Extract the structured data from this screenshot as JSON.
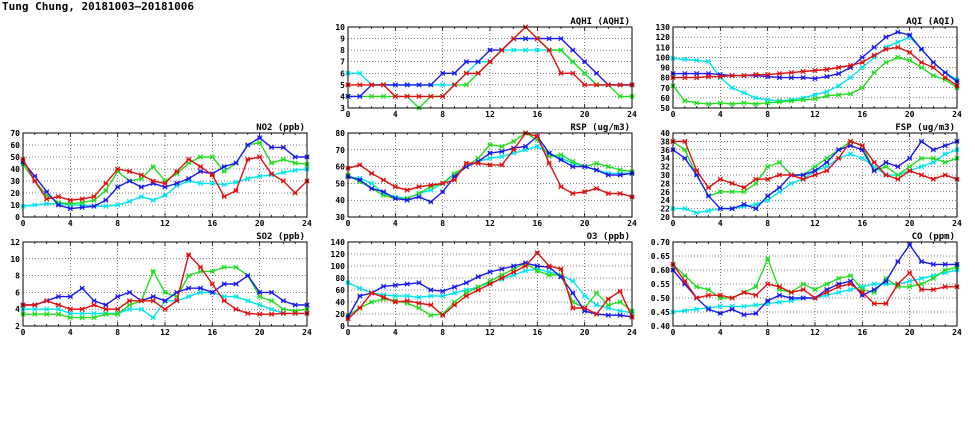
{
  "title": "Tung Chung, 20181003–20181006",
  "colors": {
    "cyan": "#00e5ee",
    "green": "#22dd22",
    "blue": "#1a1af0",
    "red": "#e01010"
  },
  "chart_data": [
    {
      "id": "aqhi",
      "type": "line",
      "title": "AQHI (AQHI)",
      "xlim": [
        0,
        24
      ],
      "ylim": [
        3,
        10
      ],
      "xticks": [
        "0",
        "4",
        "8",
        "12",
        "16",
        "20",
        "24"
      ],
      "yticks": [
        "3",
        "4",
        "5",
        "6",
        "7",
        "8",
        "9",
        "10"
      ],
      "grid": true,
      "series": [
        {
          "color": "cyan",
          "values": [
            6,
            6,
            5,
            5,
            5,
            5,
            5,
            5,
            5,
            5,
            6,
            7,
            7,
            8,
            8,
            8,
            8,
            8,
            8,
            7,
            6,
            5,
            5,
            5,
            5
          ]
        },
        {
          "color": "green",
          "values": [
            4,
            4,
            4,
            4,
            4,
            4,
            3,
            4,
            4,
            5,
            5,
            6,
            7,
            8,
            9,
            9,
            9,
            8,
            8,
            7,
            6,
            5,
            5,
            4,
            4
          ]
        },
        {
          "color": "blue",
          "values": [
            4,
            4,
            5,
            5,
            5,
            5,
            5,
            5,
            6,
            6,
            7,
            7,
            8,
            8,
            9,
            9,
            9,
            9,
            9,
            8,
            7,
            6,
            5,
            5,
            5
          ]
        },
        {
          "color": "red",
          "values": [
            5,
            5,
            5,
            5,
            4,
            4,
            4,
            4,
            4,
            5,
            6,
            6,
            7,
            8,
            9,
            10,
            9,
            8,
            6,
            6,
            5,
            5,
            5,
            5,
            5
          ]
        }
      ]
    },
    {
      "id": "aqi",
      "type": "line",
      "title": "AQI (AQI)",
      "xlim": [
        0,
        24
      ],
      "ylim": [
        50,
        130
      ],
      "xticks": [
        "0",
        "4",
        "8",
        "12",
        "16",
        "20",
        "24"
      ],
      "yticks": [
        "50",
        "60",
        "70",
        "80",
        "90",
        "100",
        "110",
        "120",
        "130"
      ],
      "grid": true,
      "series": [
        {
          "color": "cyan",
          "values": [
            99,
            98,
            97,
            96,
            80,
            70,
            65,
            60,
            58,
            57,
            58,
            60,
            63,
            66,
            72,
            80,
            90,
            100,
            110,
            115,
            120,
            108,
            95,
            85,
            78
          ]
        },
        {
          "color": "green",
          "values": [
            72,
            57,
            55,
            54,
            55,
            54,
            55,
            54,
            55,
            56,
            57,
            58,
            59,
            62,
            63,
            64,
            70,
            85,
            95,
            100,
            97,
            90,
            82,
            78,
            70
          ]
        },
        {
          "color": "blue",
          "values": [
            84,
            84,
            84,
            84,
            83,
            82,
            82,
            82,
            81,
            80,
            80,
            80,
            79,
            81,
            84,
            90,
            100,
            110,
            120,
            125,
            122,
            108,
            95,
            85,
            76
          ]
        },
        {
          "color": "red",
          "values": [
            80,
            80,
            80,
            81,
            81,
            82,
            82,
            83,
            83,
            84,
            85,
            86,
            87,
            88,
            90,
            92,
            95,
            102,
            108,
            110,
            105,
            95,
            90,
            80,
            72
          ]
        }
      ]
    },
    {
      "id": "no2",
      "type": "line",
      "title": "NO2 (ppb)",
      "xlim": [
        0,
        24
      ],
      "ylim": [
        0,
        70
      ],
      "xticks": [
        "0",
        "4",
        "8",
        "12",
        "16",
        "20",
        "24"
      ],
      "yticks": [
        "0",
        "10",
        "20",
        "30",
        "40",
        "50",
        "60",
        "70"
      ],
      "grid": true,
      "series": [
        {
          "color": "cyan",
          "values": [
            9,
            10,
            11,
            11,
            10,
            10,
            9,
            9,
            10,
            13,
            17,
            14,
            18,
            26,
            30,
            28,
            28,
            27,
            29,
            32,
            34,
            35,
            37,
            39,
            40
          ]
        },
        {
          "color": "green",
          "values": [
            44,
            30,
            18,
            12,
            11,
            12,
            14,
            22,
            38,
            30,
            32,
            42,
            30,
            36,
            45,
            50,
            50,
            38,
            45,
            60,
            62,
            45,
            48,
            45,
            44
          ]
        },
        {
          "color": "blue",
          "values": [
            46,
            34,
            21,
            10,
            7,
            8,
            9,
            14,
            25,
            30,
            25,
            28,
            25,
            28,
            32,
            38,
            36,
            42,
            45,
            60,
            66,
            58,
            58,
            50,
            50
          ]
        },
        {
          "color": "red",
          "values": [
            48,
            30,
            15,
            17,
            14,
            15,
            17,
            28,
            40,
            38,
            35,
            30,
            28,
            38,
            48,
            42,
            35,
            17,
            22,
            48,
            50,
            36,
            30,
            20,
            30
          ]
        }
      ]
    },
    {
      "id": "rsp",
      "type": "line",
      "title": "RSP (ug/m3)",
      "xlim": [
        0,
        24
      ],
      "ylim": [
        30,
        80
      ],
      "xticks": [
        "0",
        "4",
        "8",
        "12",
        "16",
        "20",
        "24"
      ],
      "yticks": [
        "30",
        "40",
        "50",
        "60",
        "70",
        "80"
      ],
      "grid": true,
      "series": [
        {
          "color": "cyan",
          "values": [
            54,
            53,
            50,
            44,
            42,
            41,
            44,
            46,
            50,
            55,
            60,
            63,
            65,
            66,
            68,
            70,
            72,
            68,
            65,
            62,
            60,
            58,
            56,
            56,
            56
          ]
        },
        {
          "color": "green",
          "values": [
            55,
            51,
            47,
            43,
            41,
            41,
            44,
            48,
            50,
            56,
            60,
            65,
            73,
            72,
            75,
            80,
            76,
            66,
            67,
            63,
            60,
            62,
            60,
            58,
            57
          ]
        },
        {
          "color": "blue",
          "values": [
            54,
            52,
            47,
            45,
            41,
            40,
            42,
            39,
            45,
            54,
            60,
            63,
            68,
            69,
            71,
            72,
            78,
            68,
            64,
            60,
            60,
            58,
            55,
            55,
            56
          ]
        },
        {
          "color": "red",
          "values": [
            59,
            61,
            56,
            52,
            48,
            46,
            48,
            49,
            50,
            52,
            62,
            62,
            61,
            61,
            70,
            80,
            78,
            62,
            48,
            44,
            45,
            47,
            44,
            44,
            42
          ]
        }
      ]
    },
    {
      "id": "fsp",
      "type": "line",
      "title": "FSP (ug/m3)",
      "xlim": [
        0,
        24
      ],
      "ylim": [
        20,
        40
      ],
      "xticks": [
        "0",
        "4",
        "8",
        "12",
        "16",
        "20",
        "24"
      ],
      "yticks": [
        "20",
        "22",
        "24",
        "26",
        "28",
        "30",
        "32",
        "34",
        "36",
        "38",
        "40"
      ],
      "grid": true,
      "series": [
        {
          "color": "cyan",
          "values": [
            22,
            22,
            21,
            21.5,
            22,
            22,
            22.5,
            23,
            24,
            26,
            28,
            29,
            31,
            32,
            34,
            35,
            34,
            32,
            30,
            30,
            31,
            32,
            33,
            35,
            36
          ]
        },
        {
          "color": "green",
          "values": [
            38,
            36,
            30,
            25,
            26,
            26,
            26,
            28,
            32,
            33,
            30,
            30,
            32,
            34,
            36,
            38,
            37,
            31,
            32,
            30,
            32,
            34,
            34,
            33,
            34
          ]
        },
        {
          "color": "blue",
          "values": [
            36,
            34,
            30,
            25,
            22,
            22,
            23,
            22,
            25,
            27,
            30,
            30,
            31,
            33,
            36,
            37,
            36,
            31,
            33,
            32,
            34,
            38,
            36,
            37,
            38
          ]
        },
        {
          "color": "red",
          "values": [
            38,
            38,
            31,
            27,
            29,
            28,
            27,
            29,
            29,
            30,
            30,
            29,
            30,
            31,
            34,
            38,
            37,
            33,
            30,
            29,
            31,
            30,
            29,
            30,
            29
          ]
        }
      ]
    },
    {
      "id": "so2",
      "type": "line",
      "title": "SO2 (ppb)",
      "xlim": [
        0,
        24
      ],
      "ylim": [
        2,
        12
      ],
      "xticks": [
        "0",
        "4",
        "8",
        "12",
        "16",
        "20",
        "24"
      ],
      "yticks": [
        "2",
        "4",
        "6",
        "8",
        "10",
        "12"
      ],
      "grid": true,
      "series": [
        {
          "color": "cyan",
          "values": [
            4,
            4,
            4,
            4,
            3.5,
            3.5,
            3.5,
            3.5,
            3.5,
            4,
            4,
            3,
            5,
            5,
            5.5,
            6,
            6,
            5.5,
            5.5,
            5,
            4.5,
            4,
            3.5,
            3.5,
            3.5
          ]
        },
        {
          "color": "green",
          "values": [
            3.4,
            3.4,
            3.4,
            3.4,
            3,
            3,
            3,
            3.4,
            3.4,
            4.5,
            5,
            8.5,
            6,
            5.5,
            8,
            8.5,
            8.5,
            9,
            9,
            8,
            5.5,
            5,
            4,
            3.8,
            4
          ]
        },
        {
          "color": "blue",
          "values": [
            4.5,
            4.5,
            5,
            5.5,
            5.5,
            6.5,
            5,
            4.5,
            5.5,
            6,
            5,
            5.5,
            5,
            6,
            6.5,
            6.5,
            6,
            7,
            7,
            8,
            6,
            6,
            5,
            4.5,
            4.5
          ]
        },
        {
          "color": "red",
          "values": [
            4.5,
            4.5,
            5,
            4.5,
            4,
            4,
            4.5,
            4,
            4,
            5,
            5,
            5,
            4,
            5,
            10.5,
            9,
            7,
            5,
            4,
            3.5,
            3.4,
            3.4,
            3.5,
            3.5,
            3.5
          ]
        }
      ]
    },
    {
      "id": "o3",
      "type": "line",
      "title": "O3 (ppb)",
      "xlim": [
        0,
        24
      ],
      "ylim": [
        0,
        140
      ],
      "xticks": [
        "0",
        "4",
        "8",
        "12",
        "16",
        "20",
        "24"
      ],
      "yticks": [
        "0",
        "20",
        "40",
        "60",
        "80",
        "100",
        "120",
        "140"
      ],
      "grid": true,
      "series": [
        {
          "color": "cyan",
          "values": [
            72,
            63,
            55,
            52,
            50,
            50,
            48,
            50,
            50,
            55,
            60,
            65,
            72,
            78,
            85,
            92,
            95,
            90,
            85,
            75,
            50,
            35,
            30,
            25,
            22
          ]
        },
        {
          "color": "green",
          "values": [
            18,
            30,
            40,
            45,
            42,
            38,
            30,
            18,
            20,
            40,
            55,
            65,
            75,
            85,
            95,
            105,
            92,
            85,
            85,
            40,
            30,
            55,
            35,
            40,
            25
          ]
        },
        {
          "color": "blue",
          "values": [
            15,
            50,
            55,
            66,
            68,
            70,
            72,
            60,
            58,
            65,
            72,
            82,
            90,
            95,
            100,
            105,
            100,
            98,
            82,
            55,
            25,
            20,
            18,
            18,
            15
          ]
        },
        {
          "color": "red",
          "values": [
            12,
            30,
            55,
            48,
            40,
            42,
            38,
            35,
            18,
            35,
            50,
            60,
            70,
            80,
            90,
            100,
            122,
            100,
            95,
            30,
            30,
            20,
            45,
            58,
            15
          ]
        }
      ]
    },
    {
      "id": "co",
      "type": "line",
      "title": "CO (ppm)",
      "xlim": [
        0,
        24
      ],
      "ylim": [
        0.4,
        0.7
      ],
      "xticks": [
        "0",
        "4",
        "8",
        "12",
        "16",
        "20",
        "24"
      ],
      "yticks": [
        "0.40",
        "0.45",
        "0.50",
        "0.55",
        "0.60",
        "0.65",
        "0.70"
      ],
      "grid": true,
      "series": [
        {
          "color": "cyan",
          "values": [
            0.45,
            0.455,
            0.46,
            0.465,
            0.47,
            0.47,
            0.47,
            0.475,
            0.48,
            0.485,
            0.49,
            0.5,
            0.5,
            0.51,
            0.52,
            0.53,
            0.54,
            0.55,
            0.55,
            0.55,
            0.56,
            0.57,
            0.58,
            0.59,
            0.6
          ]
        },
        {
          "color": "green",
          "values": [
            0.62,
            0.58,
            0.54,
            0.53,
            0.5,
            0.5,
            0.52,
            0.54,
            0.64,
            0.53,
            0.52,
            0.55,
            0.53,
            0.55,
            0.57,
            0.58,
            0.53,
            0.52,
            0.57,
            0.54,
            0.54,
            0.55,
            0.57,
            0.6,
            0.61
          ]
        },
        {
          "color": "blue",
          "values": [
            0.6,
            0.55,
            0.5,
            0.46,
            0.445,
            0.46,
            0.44,
            0.445,
            0.49,
            0.51,
            0.5,
            0.5,
            0.5,
            0.53,
            0.55,
            0.56,
            0.51,
            0.53,
            0.56,
            0.63,
            0.69,
            0.63,
            0.62,
            0.62,
            0.62
          ]
        },
        {
          "color": "red",
          "values": [
            0.62,
            0.56,
            0.5,
            0.51,
            0.51,
            0.5,
            0.52,
            0.51,
            0.55,
            0.54,
            0.52,
            0.53,
            0.5,
            0.52,
            0.54,
            0.55,
            0.52,
            0.48,
            0.48,
            0.55,
            0.59,
            0.53,
            0.53,
            0.54,
            0.54
          ]
        }
      ]
    }
  ]
}
